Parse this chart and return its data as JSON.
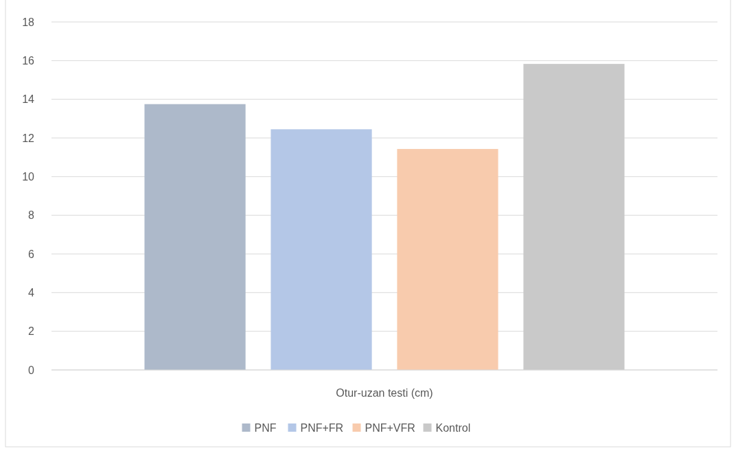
{
  "chart_data": {
    "type": "bar",
    "categories": [
      "Otur-uzan testi (cm)"
    ],
    "series": [
      {
        "name": "PNF",
        "color": "#adb9ca",
        "values": [
          13.75
        ]
      },
      {
        "name": "PNF+FR",
        "color": "#b4c7e7",
        "values": [
          12.45
        ]
      },
      {
        "name": "PNF+VFR",
        "color": "#f8cbad",
        "values": [
          11.43
        ]
      },
      {
        "name": "Kontrol",
        "color": "#c9c9c9",
        "values": [
          15.83
        ]
      }
    ],
    "ylim": [
      0,
      18
    ],
    "yticks": [
      0,
      2,
      4,
      6,
      8,
      10,
      12,
      14,
      16,
      18
    ],
    "grid": "y",
    "legend": "bottom"
  }
}
